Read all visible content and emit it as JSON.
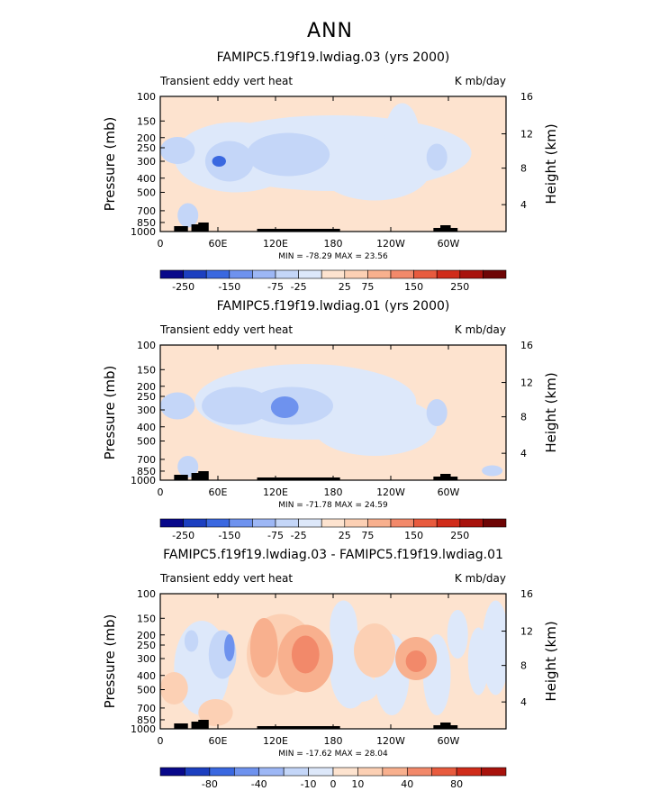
{
  "page": {
    "title": "ANN"
  },
  "chart_data": [
    {
      "type": "heatmap",
      "title": "FAMIPC5.f19f19.lwdiag.03 (yrs 2000)",
      "left_label": "Transient eddy vert heat",
      "right_label": "K mb/day",
      "ylabel": "Pressure (mb)",
      "ylabel_right": "Height (km)",
      "x_ticks": [
        "0",
        "60E",
        "120E",
        "180",
        "120W",
        "60W"
      ],
      "y_ticks": [
        "100",
        "150",
        "200",
        "250",
        "300",
        "400",
        "500",
        "700",
        "850",
        "1000"
      ],
      "y2_ticks": [
        "4",
        "8",
        "12",
        "16"
      ],
      "stats": "MIN = -78.29   MAX =  23.56",
      "colorbar": {
        "labels": [
          "-250",
          "-150",
          "-75",
          "-25",
          "25",
          "75",
          "150",
          "250"
        ],
        "colors": [
          "#08088a",
          "#1c3fc0",
          "#3a68e0",
          "#6e92ee",
          "#9db7f5",
          "#c4d6f8",
          "#dde8fa",
          "#fde3cf",
          "#fcd0b4",
          "#f8b08e",
          "#f2896a",
          "#e85b3e",
          "#d02c1a",
          "#a8120c",
          "#6e0505"
        ]
      },
      "bg_value": "25"
    },
    {
      "type": "heatmap",
      "title": "FAMIPC5.f19f19.lwdiag.01 (yrs 2000)",
      "left_label": "Transient eddy vert heat",
      "right_label": "K mb/day",
      "ylabel": "Pressure (mb)",
      "ylabel_right": "Height (km)",
      "x_ticks": [
        "0",
        "60E",
        "120E",
        "180",
        "120W",
        "60W"
      ],
      "y_ticks": [
        "100",
        "150",
        "200",
        "250",
        "300",
        "400",
        "500",
        "700",
        "850",
        "1000"
      ],
      "y2_ticks": [
        "4",
        "8",
        "12",
        "16"
      ],
      "stats": "MIN = -71.78   MAX =  24.59",
      "colorbar": {
        "labels": [
          "-250",
          "-150",
          "-75",
          "-25",
          "25",
          "75",
          "150",
          "250"
        ],
        "colors": [
          "#08088a",
          "#1c3fc0",
          "#3a68e0",
          "#6e92ee",
          "#9db7f5",
          "#c4d6f8",
          "#dde8fa",
          "#fde3cf",
          "#fcd0b4",
          "#f8b08e",
          "#f2896a",
          "#e85b3e",
          "#d02c1a",
          "#a8120c",
          "#6e0505"
        ]
      },
      "bg_value": "25"
    },
    {
      "type": "heatmap",
      "title": "FAMIPC5.f19f19.lwdiag.03 - FAMIPC5.f19f19.lwdiag.01",
      "left_label": "Transient eddy vert heat",
      "right_label": "K mb/day",
      "ylabel": "Pressure (mb)",
      "ylabel_right": "Height (km)",
      "x_ticks": [
        "0",
        "60E",
        "120E",
        "180",
        "120W",
        "60W"
      ],
      "y_ticks": [
        "100",
        "150",
        "200",
        "250",
        "300",
        "400",
        "500",
        "700",
        "850",
        "1000"
      ],
      "y2_ticks": [
        "4",
        "8",
        "12",
        "16"
      ],
      "stats": "MIN = -17.62   MAX =  28.04",
      "colorbar": {
        "labels": [
          "-80",
          "-40",
          "-10",
          "0",
          "10",
          "40",
          "80"
        ],
        "colors": [
          "#08088a",
          "#1c3fc0",
          "#3a68e0",
          "#6e92ee",
          "#9db7f5",
          "#c4d6f8",
          "#dde8fa",
          "#fde3cf",
          "#fcd0b4",
          "#f8b08e",
          "#f2896a",
          "#e85b3e",
          "#d02c1a",
          "#a8120c"
        ]
      },
      "bg_value": "0"
    }
  ]
}
